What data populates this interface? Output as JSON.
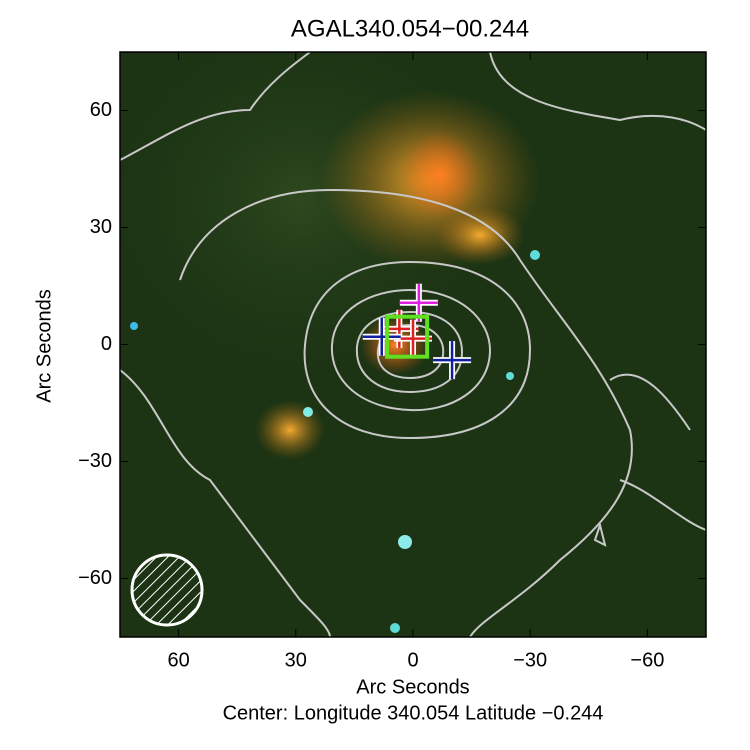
{
  "chart_data": {
    "type": "scatter",
    "title": "AGAL340.054−00.244",
    "xlabel": "Arc Seconds",
    "ylabel": "Arc Seconds",
    "footer": "Center:  Longitude 340.054 Latitude −0.244",
    "xlim": [
      75,
      -75
    ],
    "ylim": [
      -75,
      75
    ],
    "xticks": [
      60,
      30,
      0,
      {
        "value": -30,
        "label": "−30"
      },
      {
        "value": -60,
        "label": "−60"
      }
    ],
    "yticks": [
      {
        "value": -60,
        "label": "−60"
      },
      {
        "value": -30,
        "label": "−30"
      },
      0,
      30,
      60
    ],
    "series": [
      {
        "color": "#e020e0",
        "marker": "cross",
        "x": [
          -1.5
        ],
        "values": [
          10.7
        ]
      },
      {
        "color": "#e02020",
        "marker": "cross",
        "x": [
          3.5,
          0
        ],
        "values": [
          4,
          1.5
        ]
      },
      {
        "color": "#1020a0",
        "marker": "cross",
        "x": [
          8,
          -10
        ],
        "values": [
          2,
          -4
        ]
      },
      {
        "color": "#60e020",
        "marker": "square",
        "x": [
          1.5
        ],
        "values": [
          2
        ]
      }
    ]
  }
}
